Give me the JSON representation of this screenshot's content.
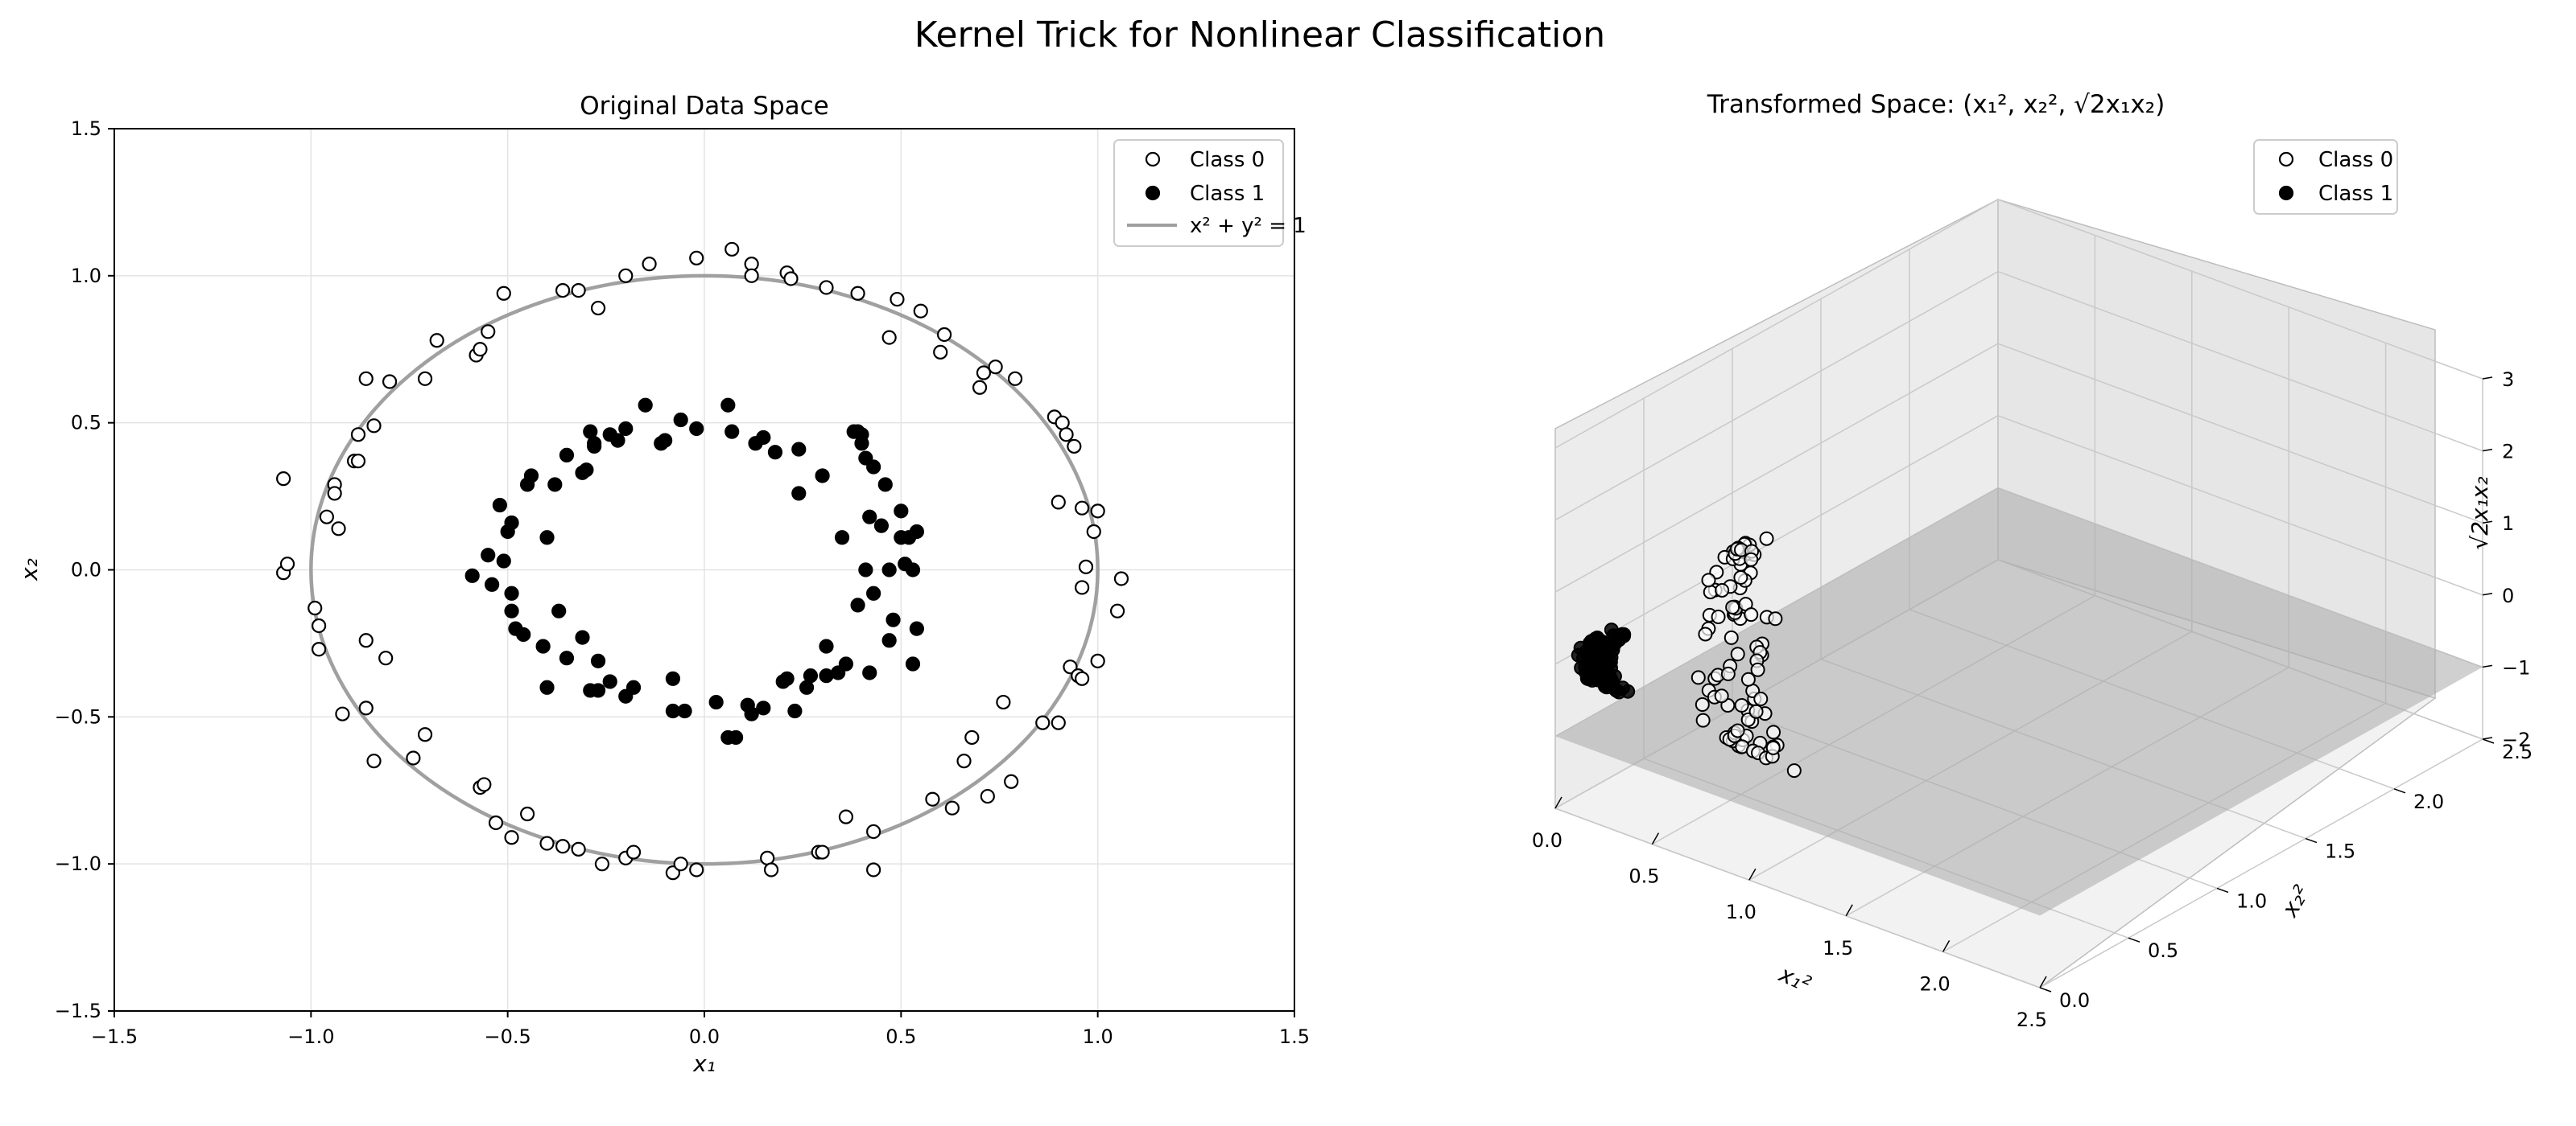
{
  "suptitle": "Kernel Trick for Nonlinear Classification",
  "chart_data": [
    {
      "type": "scatter",
      "title": "Original Data Space",
      "xlabel": "x₁",
      "ylabel": "x₂",
      "xlim": [
        -1.5,
        1.5
      ],
      "ylim": [
        -1.5,
        1.5
      ],
      "xticks": [
        -1.5,
        -1.0,
        -0.5,
        0.0,
        0.5,
        1.0,
        1.5
      ],
      "yticks": [
        -1.5,
        -1.0,
        -0.5,
        0.0,
        0.5,
        1.0,
        1.5
      ],
      "xtick_labels": [
        "−1.5",
        "−1.0",
        "−0.5",
        "0.0",
        "0.5",
        "1.0",
        "1.5"
      ],
      "ytick_labels": [
        "−1.5",
        "−1.0",
        "−0.5",
        "0.0",
        "0.5",
        "1.0",
        "1.5"
      ],
      "grid": true,
      "legend_position": "top-right",
      "legend": [
        "Class 0",
        "Class 1",
        "x² + y² = 1"
      ],
      "boundary": {
        "name": "x² + y² = 1",
        "type": "circle",
        "radius": 1.0,
        "color": "#a0a0a0"
      },
      "series": [
        {
          "name": "Class 0",
          "marker": "open-circle",
          "points": [
            [
              -1.07,
              0.31
            ],
            [
              -1.07,
              -0.01
            ],
            [
              -1.06,
              0.02
            ],
            [
              -0.99,
              -0.13
            ],
            [
              -0.98,
              -0.19
            ],
            [
              -0.98,
              -0.27
            ],
            [
              -0.96,
              0.18
            ],
            [
              -0.94,
              0.29
            ],
            [
              -0.94,
              0.26
            ],
            [
              -0.93,
              0.14
            ],
            [
              -0.92,
              -0.49
            ],
            [
              -0.89,
              0.37
            ],
            [
              -0.88,
              0.37
            ],
            [
              -0.88,
              0.46
            ],
            [
              -0.86,
              -0.47
            ],
            [
              -0.86,
              0.65
            ],
            [
              -0.86,
              -0.24
            ],
            [
              -0.84,
              0.49
            ],
            [
              -0.84,
              -0.65
            ],
            [
              -0.81,
              -0.3
            ],
            [
              -0.8,
              0.64
            ],
            [
              -0.74,
              -0.64
            ],
            [
              -0.71,
              -0.56
            ],
            [
              -0.71,
              0.65
            ],
            [
              -0.68,
              0.78
            ],
            [
              -0.58,
              0.73
            ],
            [
              -0.57,
              0.75
            ],
            [
              -0.57,
              -0.74
            ],
            [
              -0.56,
              -0.73
            ],
            [
              -0.55,
              0.81
            ],
            [
              -0.53,
              -0.86
            ],
            [
              -0.51,
              0.94
            ],
            [
              -0.49,
              -0.91
            ],
            [
              -0.45,
              -0.83
            ],
            [
              -0.4,
              -0.93
            ],
            [
              -0.36,
              -0.94
            ],
            [
              -0.36,
              0.95
            ],
            [
              -0.32,
              -0.95
            ],
            [
              -0.32,
              0.95
            ],
            [
              -0.27,
              0.89
            ],
            [
              -0.26,
              -1.0
            ],
            [
              -0.2,
              -0.98
            ],
            [
              -0.2,
              1.0
            ],
            [
              -0.18,
              -0.96
            ],
            [
              -0.14,
              1.04
            ],
            [
              -0.08,
              -1.03
            ],
            [
              -0.06,
              -1.0
            ],
            [
              -0.02,
              1.06
            ],
            [
              -0.02,
              -1.02
            ],
            [
              0.07,
              1.09
            ],
            [
              0.12,
              1.04
            ],
            [
              0.12,
              1.0
            ],
            [
              0.16,
              -0.98
            ],
            [
              0.17,
              -1.02
            ],
            [
              0.21,
              1.01
            ],
            [
              0.22,
              0.99
            ],
            [
              0.29,
              -0.96
            ],
            [
              0.3,
              -0.96
            ],
            [
              0.31,
              0.96
            ],
            [
              0.36,
              -0.84
            ],
            [
              0.39,
              0.94
            ],
            [
              0.43,
              -0.89
            ],
            [
              0.43,
              -1.02
            ],
            [
              0.47,
              0.79
            ],
            [
              0.49,
              0.92
            ],
            [
              0.55,
              0.88
            ],
            [
              0.58,
              -0.78
            ],
            [
              0.6,
              0.74
            ],
            [
              0.61,
              0.8
            ],
            [
              0.63,
              -0.81
            ],
            [
              0.66,
              -0.65
            ],
            [
              0.68,
              -0.57
            ],
            [
              0.7,
              0.62
            ],
            [
              0.71,
              0.67
            ],
            [
              0.72,
              -0.77
            ],
            [
              0.74,
              0.69
            ],
            [
              0.76,
              -0.45
            ],
            [
              0.78,
              -0.72
            ],
            [
              0.79,
              0.65
            ],
            [
              0.86,
              -0.52
            ],
            [
              0.89,
              0.52
            ],
            [
              0.9,
              0.23
            ],
            [
              0.9,
              -0.52
            ],
            [
              0.91,
              0.5
            ],
            [
              0.92,
              0.46
            ],
            [
              0.93,
              -0.33
            ],
            [
              0.94,
              0.42
            ],
            [
              0.95,
              -0.36
            ],
            [
              0.96,
              0.21
            ],
            [
              0.96,
              -0.06
            ],
            [
              0.96,
              -0.37
            ],
            [
              0.97,
              0.01
            ],
            [
              0.99,
              0.13
            ],
            [
              1.0,
              0.2
            ],
            [
              1.0,
              -0.31
            ],
            [
              1.05,
              -0.14
            ],
            [
              1.06,
              -0.03
            ]
          ]
        },
        {
          "name": "Class 1",
          "marker": "filled-circle",
          "points": [
            [
              -0.59,
              -0.02
            ],
            [
              -0.55,
              0.05
            ],
            [
              -0.54,
              -0.05
            ],
            [
              -0.52,
              0.22
            ],
            [
              -0.51,
              0.03
            ],
            [
              -0.5,
              0.13
            ],
            [
              -0.49,
              -0.08
            ],
            [
              -0.49,
              -0.14
            ],
            [
              -0.49,
              0.16
            ],
            [
              -0.48,
              -0.2
            ],
            [
              -0.46,
              -0.22
            ],
            [
              -0.45,
              0.29
            ],
            [
              -0.44,
              0.32
            ],
            [
              -0.41,
              -0.26
            ],
            [
              -0.4,
              -0.4
            ],
            [
              -0.4,
              0.11
            ],
            [
              -0.38,
              0.29
            ],
            [
              -0.37,
              -0.14
            ],
            [
              -0.35,
              -0.3
            ],
            [
              -0.35,
              0.39
            ],
            [
              -0.31,
              0.33
            ],
            [
              -0.31,
              -0.23
            ],
            [
              -0.3,
              0.34
            ],
            [
              -0.29,
              0.47
            ],
            [
              -0.29,
              -0.41
            ],
            [
              -0.28,
              0.42
            ],
            [
              -0.28,
              0.43
            ],
            [
              -0.27,
              -0.31
            ],
            [
              -0.27,
              -0.41
            ],
            [
              -0.24,
              0.46
            ],
            [
              -0.24,
              -0.38
            ],
            [
              -0.22,
              0.44
            ],
            [
              -0.2,
              0.48
            ],
            [
              -0.2,
              -0.43
            ],
            [
              -0.18,
              -0.4
            ],
            [
              -0.15,
              0.56
            ],
            [
              -0.11,
              0.43
            ],
            [
              -0.1,
              0.44
            ],
            [
              -0.08,
              -0.37
            ],
            [
              -0.08,
              -0.48
            ],
            [
              -0.06,
              0.51
            ],
            [
              -0.05,
              -0.48
            ],
            [
              -0.02,
              0.48
            ],
            [
              0.03,
              -0.45
            ],
            [
              0.06,
              -0.57
            ],
            [
              0.06,
              0.56
            ],
            [
              0.07,
              0.47
            ],
            [
              0.08,
              -0.57
            ],
            [
              0.11,
              -0.46
            ],
            [
              0.12,
              -0.49
            ],
            [
              0.13,
              0.43
            ],
            [
              0.15,
              0.45
            ],
            [
              0.15,
              -0.47
            ],
            [
              0.18,
              0.4
            ],
            [
              0.2,
              -0.38
            ],
            [
              0.21,
              -0.37
            ],
            [
              0.23,
              -0.48
            ],
            [
              0.24,
              0.26
            ],
            [
              0.24,
              0.41
            ],
            [
              0.26,
              -0.4
            ],
            [
              0.27,
              -0.36
            ],
            [
              0.3,
              0.32
            ],
            [
              0.31,
              -0.36
            ],
            [
              0.31,
              -0.26
            ],
            [
              0.34,
              -0.35
            ],
            [
              0.35,
              0.11
            ],
            [
              0.36,
              -0.32
            ],
            [
              0.38,
              0.47
            ],
            [
              0.39,
              0.47
            ],
            [
              0.39,
              -0.12
            ],
            [
              0.4,
              0.43
            ],
            [
              0.4,
              0.46
            ],
            [
              0.41,
              0.38
            ],
            [
              0.41,
              0.0
            ],
            [
              0.42,
              -0.35
            ],
            [
              0.42,
              0.18
            ],
            [
              0.43,
              0.35
            ],
            [
              0.43,
              -0.08
            ],
            [
              0.45,
              0.15
            ],
            [
              0.46,
              0.29
            ],
            [
              0.47,
              0.0
            ],
            [
              0.47,
              -0.24
            ],
            [
              0.48,
              -0.17
            ],
            [
              0.5,
              0.11
            ],
            [
              0.5,
              0.2
            ],
            [
              0.51,
              0.02
            ],
            [
              0.52,
              0.11
            ],
            [
              0.53,
              -0.32
            ],
            [
              0.53,
              0.0
            ],
            [
              0.54,
              -0.2
            ],
            [
              0.54,
              0.13
            ]
          ]
        }
      ]
    },
    {
      "type": "scatter3d",
      "title": "Transformed Space: (x₁², x₂², √2x₁x₂)",
      "xlabel": "x₁²",
      "ylabel": "x₂²",
      "zlabel": "√2x₁x₂",
      "xlim": [
        0.0,
        2.5
      ],
      "ylim": [
        0.0,
        2.5
      ],
      "zlim": [
        -2,
        3
      ],
      "xticks": [
        0.0,
        0.5,
        1.0,
        1.5,
        2.0,
        2.5
      ],
      "yticks": [
        0.0,
        0.5,
        1.0,
        1.5,
        2.0,
        2.5
      ],
      "zticks": [
        -2,
        -1,
        0,
        1,
        2,
        3
      ],
      "xtick_labels": [
        "0.0",
        "0.5",
        "1.0",
        "1.5",
        "2.0",
        "2.5"
      ],
      "ytick_labels": [
        "0.0",
        "0.5",
        "1.0",
        "1.5",
        "2.0",
        "2.5"
      ],
      "ztick_labels": [
        "−2",
        "−1",
        "0",
        "1",
        "2",
        "3"
      ],
      "grid": true,
      "legend_position": "top-right",
      "legend": [
        "Class 0",
        "Class 1"
      ],
      "separating_plane": {
        "z": -1.0,
        "color": "#a9a9a9"
      }
    }
  ]
}
